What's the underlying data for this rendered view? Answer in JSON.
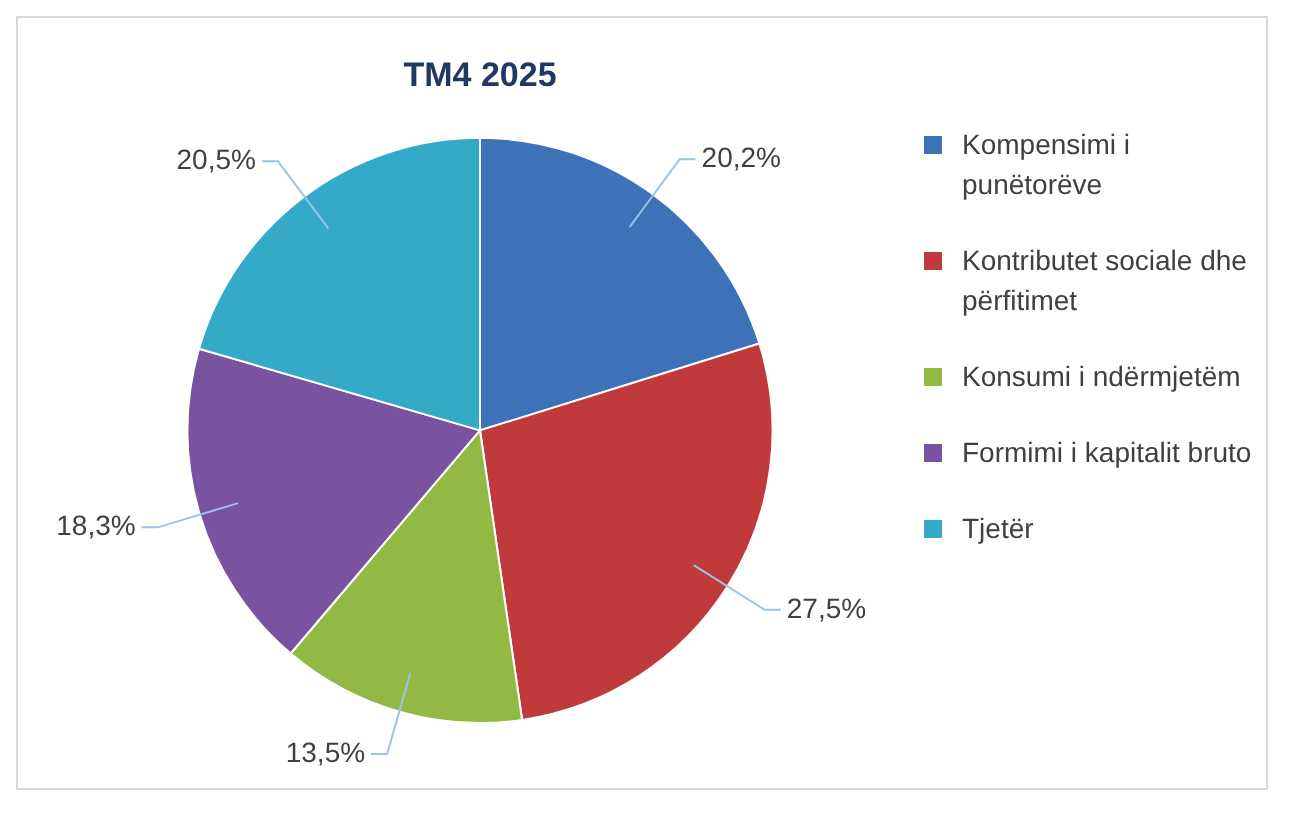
{
  "chart_data": {
    "type": "pie",
    "title": "TM4 2025",
    "categories": [
      "Kompensimi i punëtorëve",
      "Kontributet sociale dhe përfitimet",
      "Konsumi i ndërmjetëm",
      "Formimi i kapitalit bruto",
      "Tjetër"
    ],
    "values": [
      20.2,
      27.5,
      13.5,
      18.3,
      20.5
    ],
    "value_labels": [
      "20,2%",
      "27,5%",
      "13,5%",
      "18,3%",
      "20,5%"
    ],
    "colors": [
      "#3d72b8",
      "#c0393b",
      "#93b945",
      "#7a53a0",
      "#35a9c8"
    ],
    "legend": "right"
  }
}
